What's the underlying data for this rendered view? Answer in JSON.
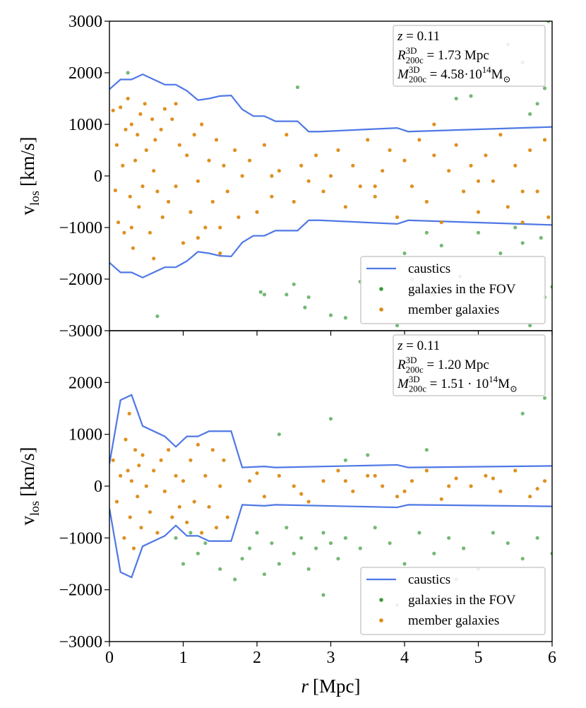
{
  "chart_data": [
    {
      "type": "scatter",
      "xlim": [
        0,
        6
      ],
      "ylim": [
        -3000,
        3000
      ],
      "xticks": [
        0,
        1,
        2,
        3,
        4,
        5,
        6
      ],
      "yticks": [
        {
          "value": -3000,
          "label": "−3000"
        },
        {
          "value": -2000,
          "label": "−2000"
        },
        {
          "value": -1000,
          "label": "−1000"
        },
        0,
        1000,
        2000,
        3000
      ],
      "ylabel": {
        "text": "v",
        "sub": "los",
        "unit": "[km/s]"
      },
      "legend": "lower right",
      "annotation": [
        [
          {
            "text": "z",
            "kind": "i"
          },
          {
            "text": " = 0.11"
          }
        ],
        [
          {
            "text": "R",
            "kind": "i"
          },
          {
            "text": "3D",
            "kind": "sup"
          },
          {
            "text": "200c",
            "kind": "sub"
          },
          {
            "text": " = 1.73 Mpc"
          }
        ],
        [
          {
            "text": "M",
            "kind": "i"
          },
          {
            "text": "3D",
            "kind": "sup"
          },
          {
            "text": "200c",
            "kind": "sub"
          },
          {
            "text": " = 4.58·10"
          },
          {
            "text": "14",
            "kind": "sup"
          },
          {
            "text": "M"
          },
          {
            "text": "⊙",
            "kind": "sub"
          }
        ]
      ],
      "series": [
        {
          "name": "caustics",
          "type": "line",
          "color": "#4f78e6",
          "x": [
            0,
            0.15,
            0.3,
            0.45,
            0.75,
            0.9,
            1.05,
            1.2,
            1.35,
            1.5,
            1.65,
            1.8,
            1.95,
            2.1,
            2.25,
            2.4,
            2.55,
            2.7,
            2.85,
            3.9,
            4.05,
            6
          ],
          "values": [
            1680,
            1870,
            1870,
            1970,
            1770,
            1770,
            1650,
            1470,
            1500,
            1550,
            1560,
            1290,
            1160,
            1160,
            1060,
            1060,
            1060,
            860,
            860,
            930,
            860,
            950
          ]
        },
        {
          "type": "line",
          "color": "#4f78e6",
          "x": [
            0,
            0.15,
            0.3,
            0.45,
            0.75,
            0.9,
            1.05,
            1.2,
            1.35,
            1.5,
            1.65,
            1.8,
            1.95,
            2.1,
            2.25,
            2.4,
            2.55,
            2.7,
            2.85,
            3.9,
            4.05,
            6
          ],
          "values": [
            -1680,
            -1870,
            -1870,
            -1970,
            -1770,
            -1770,
            -1650,
            -1470,
            -1500,
            -1550,
            -1560,
            -1290,
            -1160,
            -1160,
            -1060,
            -1060,
            -1060,
            -860,
            -860,
            -930,
            -860,
            -950
          ]
        },
        {
          "name": "galaxies in the FOV",
          "type": "scatter",
          "color": "#3a9a3a",
          "x": [
            0.25,
            0.65,
            2.05,
            2.1,
            2.4,
            2.5,
            2.7,
            2.65,
            3.0,
            3.2,
            3.4,
            2.55,
            4.75,
            5.0,
            5.3,
            5.6,
            5.7,
            5.8,
            5.9,
            5.95,
            5.6,
            5.2,
            4.9,
            5.4,
            4.7,
            4.3,
            4.5,
            5.0,
            5.5,
            5.85,
            4.0,
            3.7,
            3.9,
            4.1,
            4.4,
            5.7,
            6.0,
            5.9
          ],
          "values": [
            2000,
            -2720,
            -2250,
            -2300,
            -2300,
            -2100,
            -2350,
            -2550,
            -2700,
            -2750,
            -2050,
            1720,
            -1950,
            -2300,
            -1500,
            -1300,
            1200,
            1400,
            1700,
            3000,
            2200,
            2000,
            1550,
            2550,
            1500,
            -1100,
            -1350,
            -1100,
            -1000,
            -1200,
            -1500,
            -2600,
            -2900,
            -2000,
            -2300,
            -2900,
            -2150,
            -2350
          ]
        },
        {
          "name": "member galaxies",
          "type": "scatter",
          "color": "#dc8a14",
          "x": [
            0.05,
            0.08,
            0.1,
            0.12,
            0.15,
            0.18,
            0.2,
            0.22,
            0.25,
            0.28,
            0.3,
            0.32,
            0.35,
            0.38,
            0.4,
            0.42,
            0.45,
            0.48,
            0.5,
            0.55,
            0.58,
            0.6,
            0.62,
            0.65,
            0.7,
            0.72,
            0.75,
            0.8,
            0.85,
            0.9,
            0.95,
            1.0,
            1.05,
            1.1,
            1.15,
            1.2,
            1.25,
            1.3,
            1.35,
            1.4,
            1.45,
            1.5,
            1.55,
            1.6,
            1.7,
            1.75,
            1.8,
            1.9,
            2.0,
            2.1,
            2.2,
            2.3,
            2.4,
            2.5,
            2.6,
            2.7,
            2.8,
            2.9,
            3.0,
            3.1,
            3.2,
            3.3,
            3.4,
            3.5,
            3.6,
            3.7,
            3.8,
            3.9,
            4.0,
            4.1,
            4.2,
            4.3,
            4.4,
            4.5,
            4.6,
            4.7,
            4.8,
            4.9,
            5.0,
            5.1,
            5.2,
            5.3,
            5.4,
            5.5,
            5.6,
            5.7,
            5.8,
            5.9,
            5.95,
            0.3,
            0.6,
            0.9,
            1.2,
            1.5,
            2.2,
            3.6,
            4.4,
            5.0,
            5.6
          ],
          "values": [
            1270,
            -280,
            600,
            -900,
            1330,
            200,
            -1100,
            900,
            1500,
            -400,
            1000,
            -1400,
            300,
            800,
            -600,
            1200,
            -200,
            1400,
            500,
            -1100,
            1100,
            -1600,
            700,
            -300,
            900,
            -800,
            1300,
            -500,
            1100,
            -200,
            600,
            -1300,
            400,
            -700,
            800,
            -100,
            1000,
            -1000,
            300,
            -500,
            700,
            -1500,
            200,
            -300,
            500,
            -800,
            0,
            300,
            -700,
            600,
            -400,
            100,
            800,
            -500,
            200,
            -100,
            400,
            -300,
            0,
            500,
            -600,
            200,
            -200,
            700,
            -400,
            100,
            500,
            -800,
            300,
            -200,
            700,
            -500,
            400,
            -900,
            100,
            600,
            -300,
            200,
            -700,
            400,
            -100,
            800,
            -600,
            200,
            -900,
            500,
            -300,
            700,
            -800,
            -1000,
            100,
            1400,
            -1200,
            -1000,
            0,
            -200,
            1000,
            -100,
            -300
          ]
        }
      ]
    },
    {
      "type": "scatter",
      "xlim": [
        0,
        6
      ],
      "ylim": [
        -3000,
        3000
      ],
      "xticks": [
        0,
        1,
        2,
        3,
        4,
        5,
        6
      ],
      "yticks": [
        {
          "value": -3000,
          "label": "−3000"
        },
        {
          "value": -2000,
          "label": "−2000"
        },
        {
          "value": -1000,
          "label": "−1000"
        },
        0,
        1000,
        2000
      ],
      "ylabel": {
        "text": "v",
        "sub": "los",
        "unit": "[km/s]"
      },
      "xlabel": {
        "var": "r",
        "unit": "[Mpc]"
      },
      "legend": "lower right",
      "annotation": [
        [
          {
            "text": "z",
            "kind": "i"
          },
          {
            "text": " = 0.11"
          }
        ],
        [
          {
            "text": "R",
            "kind": "i"
          },
          {
            "text": "3D",
            "kind": "sup"
          },
          {
            "text": "200c",
            "kind": "sub"
          },
          {
            "text": " = 1.20 Mpc"
          }
        ],
        [
          {
            "text": "M",
            "kind": "i"
          },
          {
            "text": "3D",
            "kind": "sup"
          },
          {
            "text": "200c",
            "kind": "sub"
          },
          {
            "text": " = 1.51 · 10"
          },
          {
            "text": "14",
            "kind": "sup"
          },
          {
            "text": "M"
          },
          {
            "text": "⊙",
            "kind": "sub"
          }
        ]
      ],
      "series": [
        {
          "name": "caustics",
          "type": "line",
          "color": "#4f78e6",
          "x": [
            0,
            0.15,
            0.3,
            0.45,
            0.75,
            0.9,
            1.05,
            1.2,
            1.35,
            1.5,
            1.65,
            1.8,
            2.1,
            2.25,
            3.9,
            4.05,
            6
          ],
          "values": [
            430,
            1660,
            1760,
            1160,
            960,
            760,
            960,
            960,
            1060,
            1060,
            1060,
            360,
            380,
            360,
            410,
            360,
            390
          ]
        },
        {
          "type": "line",
          "color": "#4f78e6",
          "x": [
            0,
            0.15,
            0.3,
            0.45,
            0.75,
            0.9,
            1.05,
            1.2,
            1.35,
            1.5,
            1.65,
            1.8,
            2.1,
            2.25,
            3.9,
            4.05,
            6
          ],
          "values": [
            -430,
            -1660,
            -1760,
            -1160,
            -960,
            -760,
            -960,
            -960,
            -1060,
            -1060,
            -1060,
            -360,
            -380,
            -360,
            -410,
            -360,
            -390
          ]
        },
        {
          "name": "galaxies in the FOV",
          "type": "scatter",
          "color": "#3a9a3a",
          "x": [
            0.9,
            1.0,
            1.1,
            1.2,
            1.3,
            1.5,
            1.7,
            1.8,
            1.9,
            2.0,
            2.1,
            2.2,
            2.3,
            2.4,
            2.5,
            2.6,
            2.7,
            2.8,
            2.9,
            3.0,
            3.1,
            3.2,
            3.4,
            3.6,
            3.8,
            4.0,
            4.2,
            4.4,
            4.6,
            4.8,
            5.0,
            5.2,
            5.4,
            5.6,
            5.8,
            6.0,
            2.3,
            3.2,
            3.5,
            4.3,
            5.9,
            5.6,
            2.9,
            3.9,
            4.7,
            3.0
          ],
          "values": [
            -1000,
            -1500,
            -900,
            -1300,
            -1100,
            -1600,
            -1800,
            -1400,
            -1200,
            -900,
            -1700,
            -1100,
            -1500,
            -800,
            -1300,
            -1000,
            -1600,
            -1200,
            -900,
            -1100,
            -1400,
            -1000,
            -1200,
            -800,
            -1100,
            -1500,
            -900,
            -1300,
            -1000,
            -1200,
            -1600,
            -900,
            -1100,
            -1400,
            -1000,
            -1300,
            1000,
            500,
            600,
            700,
            1700,
            1400,
            -2100,
            -2300,
            -1800,
            1300
          ]
        },
        {
          "name": "member galaxies",
          "type": "scatter",
          "color": "#dc8a14",
          "x": [
            0.05,
            0.1,
            0.15,
            0.2,
            0.22,
            0.25,
            0.28,
            0.3,
            0.33,
            0.35,
            0.38,
            0.4,
            0.43,
            0.45,
            0.5,
            0.55,
            0.6,
            0.65,
            0.7,
            0.75,
            0.8,
            0.85,
            0.9,
            0.95,
            1.0,
            1.05,
            1.1,
            1.15,
            1.2,
            1.25,
            1.3,
            1.35,
            1.4,
            1.45,
            1.5,
            1.55,
            1.6,
            1.9,
            2.1,
            2.3,
            2.5,
            2.7,
            2.9,
            3.1,
            3.3,
            3.5,
            3.7,
            3.9,
            4.1,
            4.3,
            4.5,
            4.7,
            4.9,
            5.1,
            5.3,
            5.5,
            5.7,
            5.9,
            2.0,
            2.6,
            3.2,
            3.6,
            4.0,
            4.6,
            5.2,
            5.8,
            0.27
          ],
          "values": [
            500,
            -300,
            200,
            -1000,
            900,
            300,
            -600,
            100,
            -1200,
            700,
            -200,
            400,
            -800,
            600,
            0,
            -500,
            300,
            -900,
            500,
            -100,
            700,
            -600,
            200,
            -400,
            100,
            -700,
            500,
            -300,
            800,
            -900,
            200,
            -400,
            700,
            -800,
            0,
            500,
            -600,
            100,
            -200,
            200,
            0,
            -300,
            100,
            300,
            -100,
            200,
            0,
            -200,
            100,
            300,
            -250,
            150,
            0,
            200,
            -100,
            300,
            -200,
            100,
            250,
            -150,
            100,
            200,
            -100,
            0,
            150,
            -50,
            1400
          ]
        }
      ]
    }
  ]
}
